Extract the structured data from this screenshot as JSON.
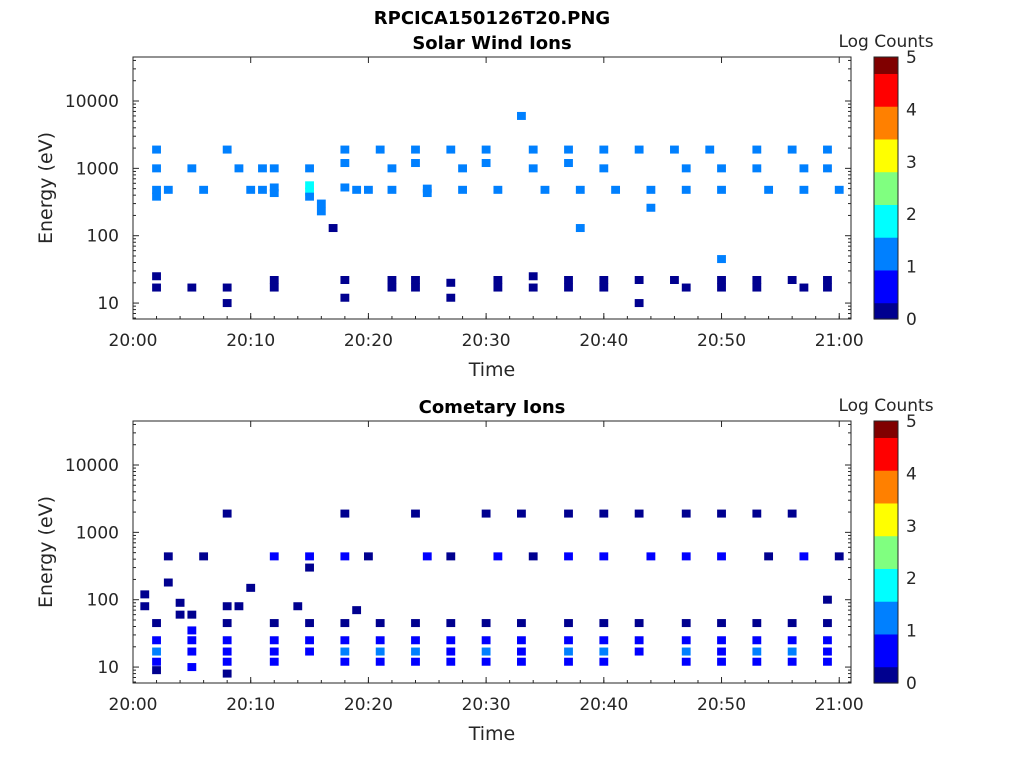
{
  "figure_title": "RPCICA150126T20.PNG",
  "colors": {
    "axis": "#262626",
    "colormap": [
      "#00008f",
      "#0000ff",
      "#0080ff",
      "#00ffff",
      "#80ff80",
      "#ffff00",
      "#ff8000",
      "#ff0000",
      "#800000"
    ]
  },
  "chart_data": [
    {
      "type": "heatmap",
      "title": "Solar Wind Ions",
      "xlabel": "Time",
      "ylabel": "Energy (eV)",
      "y_scale": "log",
      "xlim": [
        "20:00",
        "21:01"
      ],
      "ylim": [
        5.8,
        45000
      ],
      "xticks": [
        "20:00",
        "20:10",
        "20:20",
        "20:30",
        "20:40",
        "20:50",
        "21:00"
      ],
      "yticks": [
        10,
        100,
        1000,
        10000
      ],
      "ytick_labels": [
        "10",
        "100",
        "1000",
        "10000"
      ],
      "colorbar": {
        "label": "Log Counts",
        "range": [
          0,
          5
        ],
        "ticks": [
          "0",
          "1",
          "2",
          "3",
          "4",
          "5"
        ]
      },
      "grid": false,
      "cells": [
        [
          "20:02",
          1900,
          1
        ],
        [
          "20:02",
          1000,
          1
        ],
        [
          "20:02",
          480,
          1
        ],
        [
          "20:02",
          380,
          1
        ],
        [
          "20:02",
          25,
          0
        ],
        [
          "20:02",
          17,
          0
        ],
        [
          "20:03",
          480,
          1
        ],
        [
          "20:05",
          1000,
          1
        ],
        [
          "20:05",
          17,
          0
        ],
        [
          "20:06",
          480,
          1
        ],
        [
          "20:08",
          1900,
          1
        ],
        [
          "20:08",
          17,
          0
        ],
        [
          "20:08",
          10,
          0
        ],
        [
          "20:09",
          1000,
          1
        ],
        [
          "20:10",
          480,
          1
        ],
        [
          "20:11",
          1000,
          1
        ],
        [
          "20:11",
          480,
          1
        ],
        [
          "20:12",
          1000,
          1
        ],
        [
          "20:12",
          520,
          1.4
        ],
        [
          "20:12",
          430,
          1.2
        ],
        [
          "20:12",
          22,
          0
        ],
        [
          "20:12",
          17,
          0
        ],
        [
          "20:15",
          1000,
          1
        ],
        [
          "20:15",
          560,
          1.6
        ],
        [
          "20:15",
          450,
          1.8
        ],
        [
          "20:15",
          380,
          1.5
        ],
        [
          "20:16",
          300,
          1
        ],
        [
          "20:16",
          230,
          1.3
        ],
        [
          "20:18",
          1900,
          1
        ],
        [
          "20:18",
          1200,
          1
        ],
        [
          "20:18",
          520,
          1.2
        ],
        [
          "20:18",
          22,
          0
        ],
        [
          "20:18",
          12,
          0
        ],
        [
          "20:17",
          130,
          0
        ],
        [
          "20:19",
          480,
          1
        ],
        [
          "20:20",
          480,
          1
        ],
        [
          "20:21",
          1900,
          1
        ],
        [
          "20:22",
          1000,
          1
        ],
        [
          "20:22",
          480,
          1.1
        ],
        [
          "20:22",
          22,
          0
        ],
        [
          "20:22",
          17,
          0
        ],
        [
          "20:24",
          1900,
          1
        ],
        [
          "20:24",
          1200,
          1
        ],
        [
          "20:24",
          22,
          0
        ],
        [
          "20:24",
          17,
          0
        ],
        [
          "20:25",
          500,
          1.5
        ],
        [
          "20:25",
          430,
          1.3
        ],
        [
          "20:27",
          1900,
          1
        ],
        [
          "20:28",
          1000,
          1
        ],
        [
          "20:28",
          480,
          1
        ],
        [
          "20:27",
          20,
          0
        ],
        [
          "20:27",
          12,
          0
        ],
        [
          "20:30",
          1900,
          1
        ],
        [
          "20:30",
          1200,
          1
        ],
        [
          "20:31",
          480,
          1.2
        ],
        [
          "20:31",
          22,
          0
        ],
        [
          "20:31",
          17,
          0
        ],
        [
          "20:33",
          6000,
          1
        ],
        [
          "20:34",
          1900,
          1
        ],
        [
          "20:34",
          1000,
          1
        ],
        [
          "20:34",
          25,
          0
        ],
        [
          "20:34",
          17,
          0
        ],
        [
          "20:35",
          480,
          1.2
        ],
        [
          "20:37",
          1900,
          1
        ],
        [
          "20:37",
          1200,
          1.3
        ],
        [
          "20:38",
          480,
          1.1
        ],
        [
          "20:37",
          22,
          0
        ],
        [
          "20:37",
          17,
          0
        ],
        [
          "20:38",
          130,
          1
        ],
        [
          "20:40",
          1900,
          1
        ],
        [
          "20:40",
          1000,
          1
        ],
        [
          "20:41",
          480,
          1
        ],
        [
          "20:40",
          22,
          0
        ],
        [
          "20:40",
          17,
          0
        ],
        [
          "20:43",
          1900,
          1
        ],
        [
          "20:44",
          480,
          1
        ],
        [
          "20:43",
          22,
          0
        ],
        [
          "20:43",
          10,
          0
        ],
        [
          "20:44",
          260,
          1
        ],
        [
          "20:46",
          1900,
          1
        ],
        [
          "20:47",
          1000,
          1
        ],
        [
          "20:47",
          480,
          1
        ],
        [
          "20:46",
          22,
          0
        ],
        [
          "20:47",
          17,
          0
        ],
        [
          "20:49",
          1900,
          1
        ],
        [
          "20:50",
          1000,
          1
        ],
        [
          "20:50",
          480,
          1
        ],
        [
          "20:50",
          22,
          0
        ],
        [
          "20:50",
          17,
          0
        ],
        [
          "20:50",
          45,
          1
        ],
        [
          "20:53",
          1900,
          1
        ],
        [
          "20:53",
          1000,
          1
        ],
        [
          "20:54",
          480,
          1
        ],
        [
          "20:53",
          22,
          0
        ],
        [
          "20:53",
          17,
          0
        ],
        [
          "20:56",
          1900,
          1
        ],
        [
          "20:57",
          1000,
          1
        ],
        [
          "20:57",
          480,
          1
        ],
        [
          "20:56",
          22,
          0
        ],
        [
          "20:57",
          17,
          0
        ],
        [
          "20:59",
          1900,
          1
        ],
        [
          "20:59",
          1000,
          1
        ],
        [
          "21:00",
          480,
          1
        ],
        [
          "20:59",
          22,
          0
        ],
        [
          "20:59",
          17,
          0
        ]
      ]
    },
    {
      "type": "heatmap",
      "title": "Cometary Ions",
      "xlabel": "Time",
      "ylabel": "Energy (eV)",
      "y_scale": "log",
      "xlim": [
        "20:00",
        "21:01"
      ],
      "ylim": [
        5.8,
        45000
      ],
      "xticks": [
        "20:00",
        "20:10",
        "20:20",
        "20:30",
        "20:40",
        "20:50",
        "21:00"
      ],
      "yticks": [
        10,
        100,
        1000,
        10000
      ],
      "ytick_labels": [
        "10",
        "100",
        "1000",
        "10000"
      ],
      "colorbar": {
        "label": "Log Counts",
        "range": [
          0,
          5
        ],
        "ticks": [
          "0",
          "1",
          "2",
          "3",
          "4",
          "5"
        ]
      },
      "grid": false,
      "cells": [
        [
          "20:01",
          120,
          0
        ],
        [
          "20:01",
          80,
          0
        ],
        [
          "20:02",
          45,
          0
        ],
        [
          "20:02",
          25,
          0.5
        ],
        [
          "20:02",
          17,
          1
        ],
        [
          "20:02",
          12,
          0.4
        ],
        [
          "20:02",
          9,
          0
        ],
        [
          "20:03",
          440,
          0
        ],
        [
          "20:03",
          180,
          0
        ],
        [
          "20:04",
          90,
          0
        ],
        [
          "20:04",
          60,
          0
        ],
        [
          "20:05",
          60,
          0
        ],
        [
          "20:05",
          35,
          0.4
        ],
        [
          "20:06",
          440,
          0
        ],
        [
          "20:05",
          25,
          0.5
        ],
        [
          "20:05",
          17,
          0.6
        ],
        [
          "20:05",
          10,
          0.4
        ],
        [
          "20:08",
          1900,
          0
        ],
        [
          "20:08",
          80,
          0
        ],
        [
          "20:08",
          45,
          0.3
        ],
        [
          "20:08",
          25,
          0.6
        ],
        [
          "20:08",
          17,
          0.8
        ],
        [
          "20:08",
          12,
          0.5
        ],
        [
          "20:08",
          8,
          0.3
        ],
        [
          "20:09",
          80,
          0
        ],
        [
          "20:10",
          150,
          0
        ],
        [
          "20:12",
          440,
          0.4
        ],
        [
          "20:12",
          45,
          0.3
        ],
        [
          "20:12",
          25,
          0.6
        ],
        [
          "20:12",
          17,
          0.9
        ],
        [
          "20:12",
          12,
          0.5
        ],
        [
          "20:14",
          80,
          0
        ],
        [
          "20:15",
          440,
          0.5
        ],
        [
          "20:15",
          300,
          0.3
        ],
        [
          "20:15",
          45,
          0.3
        ],
        [
          "20:15",
          25,
          0.5
        ],
        [
          "20:15",
          17,
          0.8
        ],
        [
          "20:18",
          1900,
          0
        ],
        [
          "20:18",
          440,
          0.5
        ],
        [
          "20:18",
          45,
          0.3
        ],
        [
          "20:18",
          25,
          0.6
        ],
        [
          "20:18",
          17,
          1.1
        ],
        [
          "20:18",
          12,
          0.6
        ],
        [
          "20:19",
          70,
          0
        ],
        [
          "20:20",
          440,
          0.3
        ],
        [
          "20:21",
          45,
          0.3
        ],
        [
          "20:21",
          25,
          0.6
        ],
        [
          "20:21",
          17,
          1.3
        ],
        [
          "20:21",
          12,
          0.7
        ],
        [
          "20:24",
          1900,
          0
        ],
        [
          "20:25",
          440,
          0.5
        ],
        [
          "20:24",
          45,
          0.3
        ],
        [
          "20:24",
          25,
          0.6
        ],
        [
          "20:24",
          17,
          1.1
        ],
        [
          "20:24",
          12,
          0.6
        ],
        [
          "20:27",
          440,
          0.3
        ],
        [
          "20:27",
          45,
          0.3
        ],
        [
          "20:27",
          25,
          0.6
        ],
        [
          "20:27",
          17,
          0.8
        ],
        [
          "20:27",
          12,
          0.5
        ],
        [
          "20:30",
          1900,
          0
        ],
        [
          "20:31",
          440,
          0.4
        ],
        [
          "20:30",
          45,
          0.3
        ],
        [
          "20:30",
          25,
          0.6
        ],
        [
          "20:30",
          17,
          1.2
        ],
        [
          "20:30",
          12,
          0.6
        ],
        [
          "20:33",
          1900,
          0
        ],
        [
          "20:34",
          440,
          0.3
        ],
        [
          "20:33",
          45,
          0.3
        ],
        [
          "20:33",
          25,
          0.6
        ],
        [
          "20:33",
          17,
          0.9
        ],
        [
          "20:33",
          12,
          0.5
        ],
        [
          "20:37",
          1900,
          0
        ],
        [
          "20:37",
          440,
          0.4
        ],
        [
          "20:37",
          45,
          0.3
        ],
        [
          "20:37",
          25,
          0.7
        ],
        [
          "20:37",
          17,
          1.4
        ],
        [
          "20:37",
          12,
          0.7
        ],
        [
          "20:40",
          1900,
          0
        ],
        [
          "20:40",
          440,
          0.4
        ],
        [
          "20:40",
          45,
          0.3
        ],
        [
          "20:40",
          25,
          0.6
        ],
        [
          "20:40",
          17,
          1.0
        ],
        [
          "20:40",
          12,
          0.6
        ],
        [
          "20:43",
          1900,
          0
        ],
        [
          "20:44",
          440,
          0.4
        ],
        [
          "20:43",
          45,
          0.3
        ],
        [
          "20:43",
          25,
          0.6
        ],
        [
          "20:43",
          17,
          0.9
        ],
        [
          "20:47",
          1900,
          0
        ],
        [
          "20:47",
          440,
          0.4
        ],
        [
          "20:47",
          45,
          0.3
        ],
        [
          "20:47",
          25,
          0.7
        ],
        [
          "20:47",
          17,
          1.2
        ],
        [
          "20:47",
          12,
          0.6
        ],
        [
          "20:50",
          1900,
          0
        ],
        [
          "20:50",
          440,
          0.4
        ],
        [
          "20:50",
          45,
          0.3
        ],
        [
          "20:50",
          25,
          0.6
        ],
        [
          "20:50",
          17,
          0.9
        ],
        [
          "20:50",
          12,
          0.5
        ],
        [
          "20:53",
          1900,
          0
        ],
        [
          "20:54",
          440,
          0.3
        ],
        [
          "20:53",
          45,
          0.3
        ],
        [
          "20:53",
          25,
          0.6
        ],
        [
          "20:53",
          17,
          1.1
        ],
        [
          "20:53",
          12,
          0.6
        ],
        [
          "20:56",
          1900,
          0
        ],
        [
          "20:57",
          440,
          0.4
        ],
        [
          "20:56",
          45,
          0.3
        ],
        [
          "20:56",
          25,
          0.6
        ],
        [
          "20:56",
          17,
          1.0
        ],
        [
          "20:56",
          12,
          0.5
        ],
        [
          "20:59",
          100,
          0
        ],
        [
          "20:59",
          45,
          0.3
        ],
        [
          "20:59",
          25,
          0.6
        ],
        [
          "20:59",
          17,
          0.9
        ],
        [
          "20:59",
          12,
          0.5
        ],
        [
          "21:00",
          440,
          0.3
        ]
      ]
    }
  ]
}
